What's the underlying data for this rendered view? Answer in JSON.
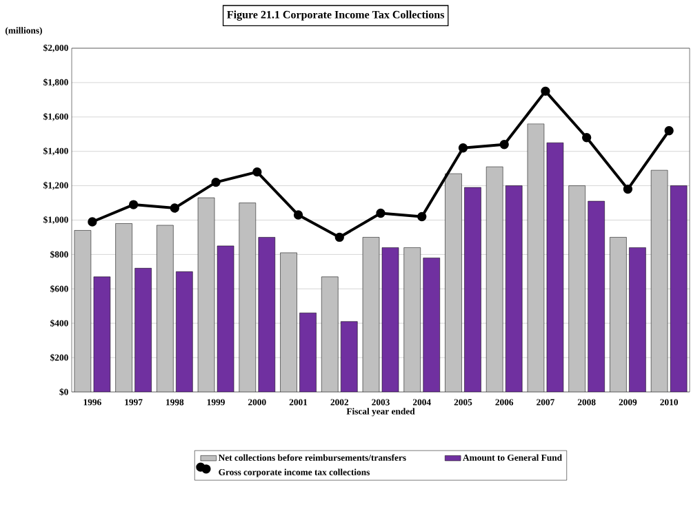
{
  "chart_data": {
    "type": "bar",
    "title": "Figure 21.1  Corporate Income Tax Collections",
    "annotations": [
      "(millions)"
    ],
    "xlabel": "Fiscal year ended",
    "categories": [
      "1996",
      "1997",
      "1998",
      "1999",
      "2000",
      "2001",
      "2002",
      "2003",
      "2004",
      "2005",
      "2006",
      "2007",
      "2008",
      "2009",
      "2010"
    ],
    "series": [
      {
        "name": "Net collections before reimbursements/transfers",
        "color": "#bfbfbf",
        "values": [
          940,
          980,
          970,
          1130,
          1100,
          810,
          670,
          900,
          840,
          1270,
          1310,
          1560,
          1200,
          900,
          1290
        ]
      },
      {
        "name": "Amount to General Fund",
        "color": "#7030a0",
        "values": [
          670,
          720,
          700,
          850,
          900,
          460,
          410,
          840,
          780,
          1190,
          1200,
          1450,
          1110,
          840,
          1200
        ]
      },
      {
        "name": "Gross corporate income tax collections",
        "type": "line",
        "marker": "circle",
        "color": "#000000",
        "values": [
          990,
          1090,
          1070,
          1220,
          1280,
          1030,
          900,
          1040,
          1020,
          1420,
          1440,
          1750,
          1480,
          1180,
          1520
        ]
      }
    ],
    "ylim": [
      0,
      2000
    ],
    "yticks": [
      {
        "value": 0,
        "label": "$0"
      },
      {
        "value": 200,
        "label": "$200"
      },
      {
        "value": 400,
        "label": "$400"
      },
      {
        "value": 600,
        "label": "$600"
      },
      {
        "value": 800,
        "label": "$800"
      },
      {
        "value": 1000,
        "label": "$1,000"
      },
      {
        "value": 1200,
        "label": "$1,200"
      },
      {
        "value": 1400,
        "label": "$1,400"
      },
      {
        "value": 1600,
        "label": "$1,600"
      },
      {
        "value": 1800,
        "label": "$1,800"
      },
      {
        "value": 2000,
        "label": "$2,000"
      }
    ],
    "grid": "y",
    "legend": "bottom"
  }
}
